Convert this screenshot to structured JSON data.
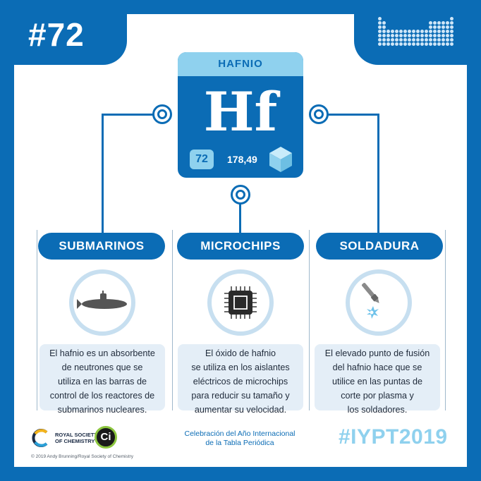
{
  "header": {
    "issue_number": "#72"
  },
  "element": {
    "name": "HAFNIO",
    "symbol": "Hf",
    "atomic_number": "72",
    "atomic_mass": "178,49",
    "state_icon": "cube-icon"
  },
  "uses": [
    {
      "title": "SUBMARINOS",
      "icon": "submarine-icon",
      "description": "El hafnio es un absorbente\nde neutrones que se\nutiliza en las barras de\ncontrol de los reactores de\nsubmarinos nucleares."
    },
    {
      "title": "MICROCHIPS",
      "icon": "microchip-icon",
      "description": "El óxido de hafnio\nse utiliza en los aislantes\neléctricos de microchips\npara reducir su tamaño y\naumentar su velocidad."
    },
    {
      "title": "SOLDADURA",
      "icon": "plasma-torch-icon",
      "description": "El elevado punto de fusión\ndel hafnio hace que se\nutilice en las puntas de\ncorte por plasma y\nlos soldadores."
    }
  ],
  "footer": {
    "rsc_text": "ROYAL SOCIETY\nOF CHEMISTRY",
    "ci_text": "Ci",
    "copyright": "© 2019 Andy Brunning/Royal Society of Chemistry",
    "caption": "Celebración del Año Internacional\nde la Tabla Periódica",
    "hashtag": "#IYPT2019"
  },
  "colors": {
    "brand_blue": "#0b6cb5",
    "light_blue": "#8fd1ee",
    "pale_blue": "#e4eef7"
  }
}
